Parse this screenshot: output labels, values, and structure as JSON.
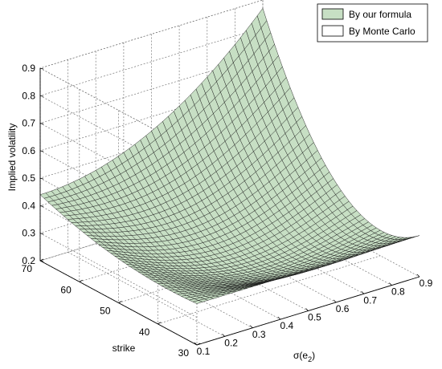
{
  "chart_data": {
    "type": "surface",
    "title": "",
    "xlabel": "strike",
    "ylabel": "σ(e2)",
    "zlabel": "Implied volatility",
    "ylabel_main": "σ(e",
    "ylabel_sub": "2",
    "ylabel_close": ")",
    "strike_range": [
      30,
      70
    ],
    "sigma_range": [
      0.1,
      0.9
    ],
    "zlim": [
      0.2,
      0.9
    ],
    "strike_ticks": [
      "30",
      "40",
      "50",
      "60",
      "70"
    ],
    "sigma_ticks": [
      "0.1",
      "0.2",
      "0.3",
      "0.4",
      "0.5",
      "0.6",
      "0.7",
      "0.8",
      "0.9"
    ],
    "z_ticks": [
      "0.2",
      "0.3",
      "0.4",
      "0.5",
      "0.6",
      "0.7",
      "0.8",
      "0.9"
    ],
    "grid": true,
    "legend_position": "top-right",
    "series": [
      {
        "name": "By our formula",
        "color": "#c7dfc4"
      },
      {
        "name": "By Monte Carlo",
        "color": "#ffffff"
      }
    ],
    "surface_samples": [
      {
        "strike": 70,
        "sigma": 0.1,
        "vol": 0.44
      },
      {
        "strike": 30,
        "sigma": 0.1,
        "vol": 0.35
      },
      {
        "strike": 50,
        "sigma": 0.1,
        "vol": 0.25
      },
      {
        "strike": 70,
        "sigma": 0.9,
        "vol": 0.87
      },
      {
        "strike": 30,
        "sigma": 0.9,
        "vol": 0.35
      }
    ]
  }
}
